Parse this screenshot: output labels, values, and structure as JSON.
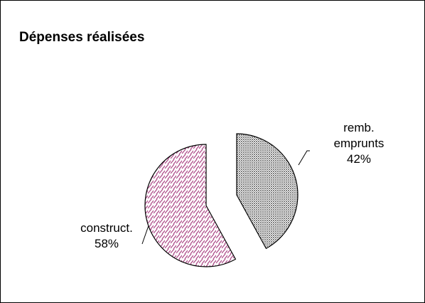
{
  "chart_data": {
    "type": "pie",
    "title": "Dépenses réalisées",
    "categories": [
      "remb. emprunts",
      "construct."
    ],
    "values": [
      42,
      58
    ],
    "value_labels": [
      "42%",
      "58%"
    ],
    "colors": [
      "#808080",
      "#b0508c"
    ]
  }
}
